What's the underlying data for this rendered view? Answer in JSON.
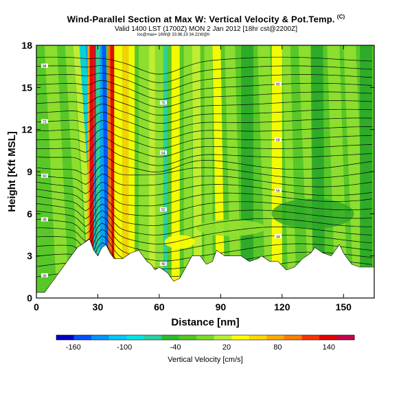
{
  "chart_data": {
    "type": "heatmap",
    "title": "Wind-Parallel Section at Max W: Vertical Velocity & Pot.Temp.",
    "title_mark": "(C)",
    "subtitle": "Valid 1400 LST (1700Z) MON 2 Jan 2012 [18hr cst@2200Z]",
    "subtitle_small": "loc@max= 16W@ 33.96,19 34.21W@h",
    "xlabel": "Distance [nm]",
    "ylabel": "Height [Kft MSL]",
    "xlim": [
      0,
      165
    ],
    "ylim": [
      0,
      18
    ],
    "xticks": [
      0,
      30,
      60,
      90,
      120,
      150
    ],
    "yticks": [
      0,
      3,
      6,
      9,
      12,
      15,
      18
    ],
    "colorbar": {
      "label": "Vertical Velocity [cm/s]",
      "ticks": [
        -160,
        -100,
        -40,
        20,
        80,
        140
      ],
      "range": [
        -180,
        170
      ],
      "colors": [
        "#0000c8",
        "#0050ff",
        "#0096ff",
        "#00c8ff",
        "#00e6e6",
        "#28d2a0",
        "#28be28",
        "#50c81e",
        "#78dc28",
        "#b4f032",
        "#ffff00",
        "#ffd700",
        "#ffaa00",
        "#ff7d00",
        "#ff3200",
        "#e60000",
        "#c80050"
      ]
    },
    "contour_labels": [
      "32",
      "36",
      "40",
      "44",
      "48",
      "52",
      "56",
      "60",
      "64",
      "68",
      "72",
      "76",
      "80",
      "84",
      "88",
      "92",
      "96"
    ],
    "terrain_kft": [
      [
        0,
        0.4
      ],
      [
        4,
        0.4
      ],
      [
        8,
        1.2
      ],
      [
        12,
        2.0
      ],
      [
        16,
        2.8
      ],
      [
        20,
        3.6
      ],
      [
        24,
        4.0
      ],
      [
        26,
        4.2
      ],
      [
        28,
        3.4
      ],
      [
        30,
        3.0
      ],
      [
        32,
        3.6
      ],
      [
        34,
        3.8
      ],
      [
        36,
        3.2
      ],
      [
        38,
        2.8
      ],
      [
        42,
        2.8
      ],
      [
        46,
        3.2
      ],
      [
        50,
        3.4
      ],
      [
        54,
        2.6
      ],
      [
        56,
        2.4
      ],
      [
        58,
        2.0
      ],
      [
        60,
        2.2
      ],
      [
        64,
        1.8
      ],
      [
        67,
        1.2
      ],
      [
        70,
        1.4
      ],
      [
        73,
        2.2
      ],
      [
        76,
        3.0
      ],
      [
        80,
        3.0
      ],
      [
        83,
        2.4
      ],
      [
        86,
        2.6
      ],
      [
        88,
        3.4
      ],
      [
        92,
        3.0
      ],
      [
        96,
        3.0
      ],
      [
        100,
        3.0
      ],
      [
        104,
        2.6
      ],
      [
        108,
        2.8
      ],
      [
        110,
        3.0
      ],
      [
        114,
        2.6
      ],
      [
        118,
        2.6
      ],
      [
        122,
        2.0
      ],
      [
        126,
        2.2
      ],
      [
        130,
        2.8
      ],
      [
        134,
        3.2
      ],
      [
        136,
        3.6
      ],
      [
        140,
        3.2
      ],
      [
        144,
        3.0
      ],
      [
        146,
        3.4
      ],
      [
        148,
        3.8
      ],
      [
        150,
        3.2
      ],
      [
        154,
        2.4
      ],
      [
        158,
        2.2
      ],
      [
        165,
        2.2
      ]
    ]
  }
}
